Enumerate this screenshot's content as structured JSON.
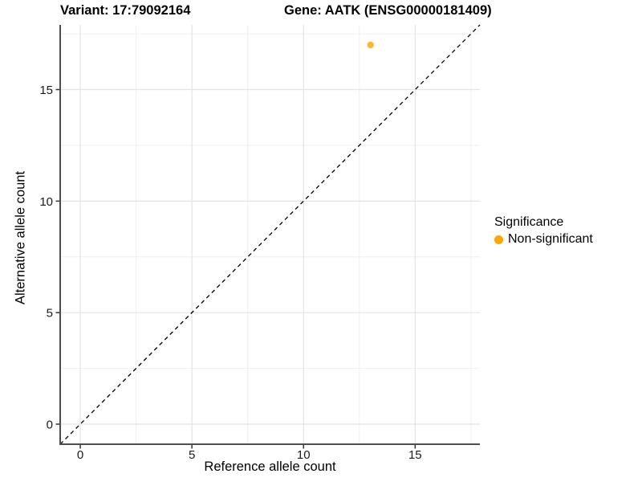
{
  "title": {
    "variant": "Variant: 17:79092164",
    "gene": "Gene: AATK (ENSG00000181409)"
  },
  "chart_data": {
    "type": "scatter",
    "title_left": "Variant: 17:79092164",
    "title_right": "Gene: AATK (ENSG00000181409)",
    "xlabel": "Reference allele count",
    "ylabel": "Alternative allele count",
    "xlim": [
      -0.9,
      17.9
    ],
    "ylim": [
      -0.9,
      17.9
    ],
    "x_ticks": [
      0,
      5,
      10,
      15
    ],
    "y_ticks": [
      0,
      5,
      10,
      15
    ],
    "x_minor_gridlines": [
      2.5,
      7.5,
      12.5,
      17.5
    ],
    "y_minor_gridlines": [
      2.5,
      7.5,
      12.5,
      17.5
    ],
    "grid": "major and minor, light gray on white",
    "reference_line": {
      "type": "identity y=x",
      "style": "dashed",
      "color": "#000000"
    },
    "series": [
      {
        "name": "Non-significant",
        "color": "#FFA500",
        "opacity": 0.8,
        "points": [
          {
            "x": 13,
            "y": 17
          }
        ]
      }
    ],
    "legend": {
      "title": "Significance",
      "position": "right",
      "items": [
        {
          "label": "Non-significant",
          "color": "#FFA500",
          "marker": "circle"
        }
      ]
    }
  },
  "colors": {
    "background": "#FFFFFF",
    "grid_major": "#E4E4E4",
    "grid_minor": "#F0F0F0",
    "axis_line": "#4D4D4D",
    "tick_mark": "#333333",
    "tick_label": "#1A1A1A",
    "point": "#FFA500"
  }
}
